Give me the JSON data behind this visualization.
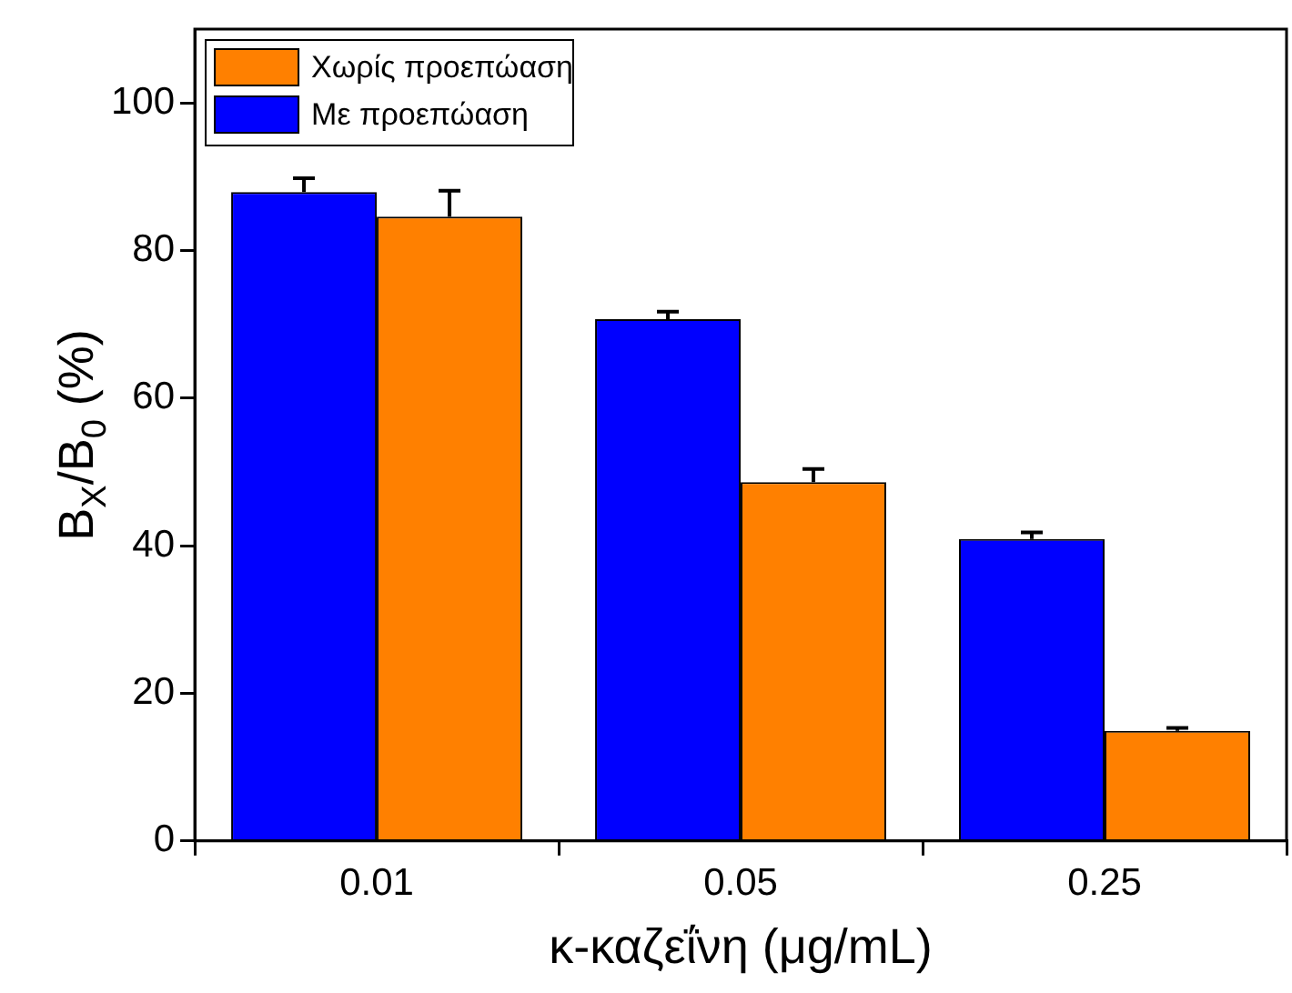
{
  "chart_data": {
    "type": "bar",
    "xlabel": "κ-καζεΐνη (μg/mL)",
    "ylabel": "B$_{X}$/B$_{0}$ (%)",
    "categories": [
      "0.01",
      "0.05",
      "0.25"
    ],
    "series": [
      {
        "name": "Με προεπώαση",
        "color": "#0000ff",
        "values": [
          87.9,
          70.7,
          40.9
        ],
        "errors": [
          [
            87.9,
            89.8
          ],
          [
            70.7,
            71.7
          ],
          [
            40.9,
            41.8
          ]
        ]
      },
      {
        "name": "Χωρίς προεπώαση",
        "color": "#ff8000",
        "values": [
          84.6,
          48.6,
          14.9
        ],
        "errors": [
          [
            84.6,
            88.1
          ],
          [
            48.6,
            50.4
          ],
          [
            14.9,
            15.3
          ]
        ]
      }
    ],
    "ylim": [
      0,
      110
    ],
    "yticks": [
      0,
      20,
      40,
      60,
      80,
      100
    ],
    "grid": false,
    "legend": "top left"
  }
}
